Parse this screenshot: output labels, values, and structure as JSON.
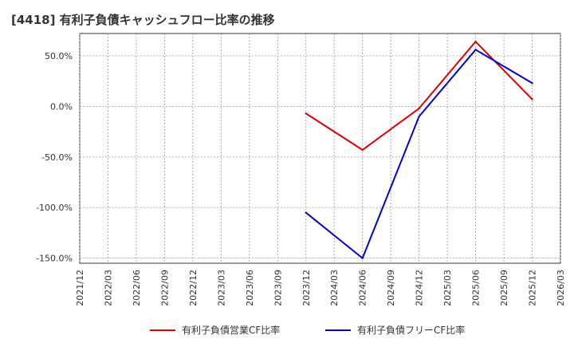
{
  "chart_data": {
    "type": "line",
    "title": "[4418]  有利子負債キャッシュフロー比率の推移",
    "xlabel": "",
    "ylabel": "",
    "ylim": [
      -155,
      72
    ],
    "yticks": [
      50,
      0,
      -50,
      -100,
      -150
    ],
    "ytick_labels": [
      "50.0%",
      "0.0%",
      "-50.0%",
      "-100.0%",
      "-150.0%"
    ],
    "x_categories": [
      "2021/12",
      "2022/03",
      "2022/06",
      "2022/09",
      "2022/12",
      "2023/03",
      "2023/06",
      "2023/09",
      "2023/12",
      "2024/03",
      "2024/06",
      "2024/09",
      "2024/12",
      "2025/03",
      "2025/06",
      "2025/09",
      "2025/12",
      "2026/03"
    ],
    "grid": true,
    "legend_position": "bottom",
    "series": [
      {
        "name": "有利子負債営業CF比率",
        "color": "#dd0000",
        "x": [
          "2023/12",
          "2024/06",
          "2024/12",
          "2025/06",
          "2025/12"
        ],
        "values": [
          -7,
          -43,
          -2,
          64,
          7
        ]
      },
      {
        "name": "有利子負債フリーCF比率",
        "color": "#0000cc",
        "x": [
          "2023/12",
          "2024/06",
          "2024/12",
          "2025/06",
          "2025/12"
        ],
        "values": [
          -105,
          -150,
          -10,
          56,
          23
        ]
      }
    ]
  }
}
